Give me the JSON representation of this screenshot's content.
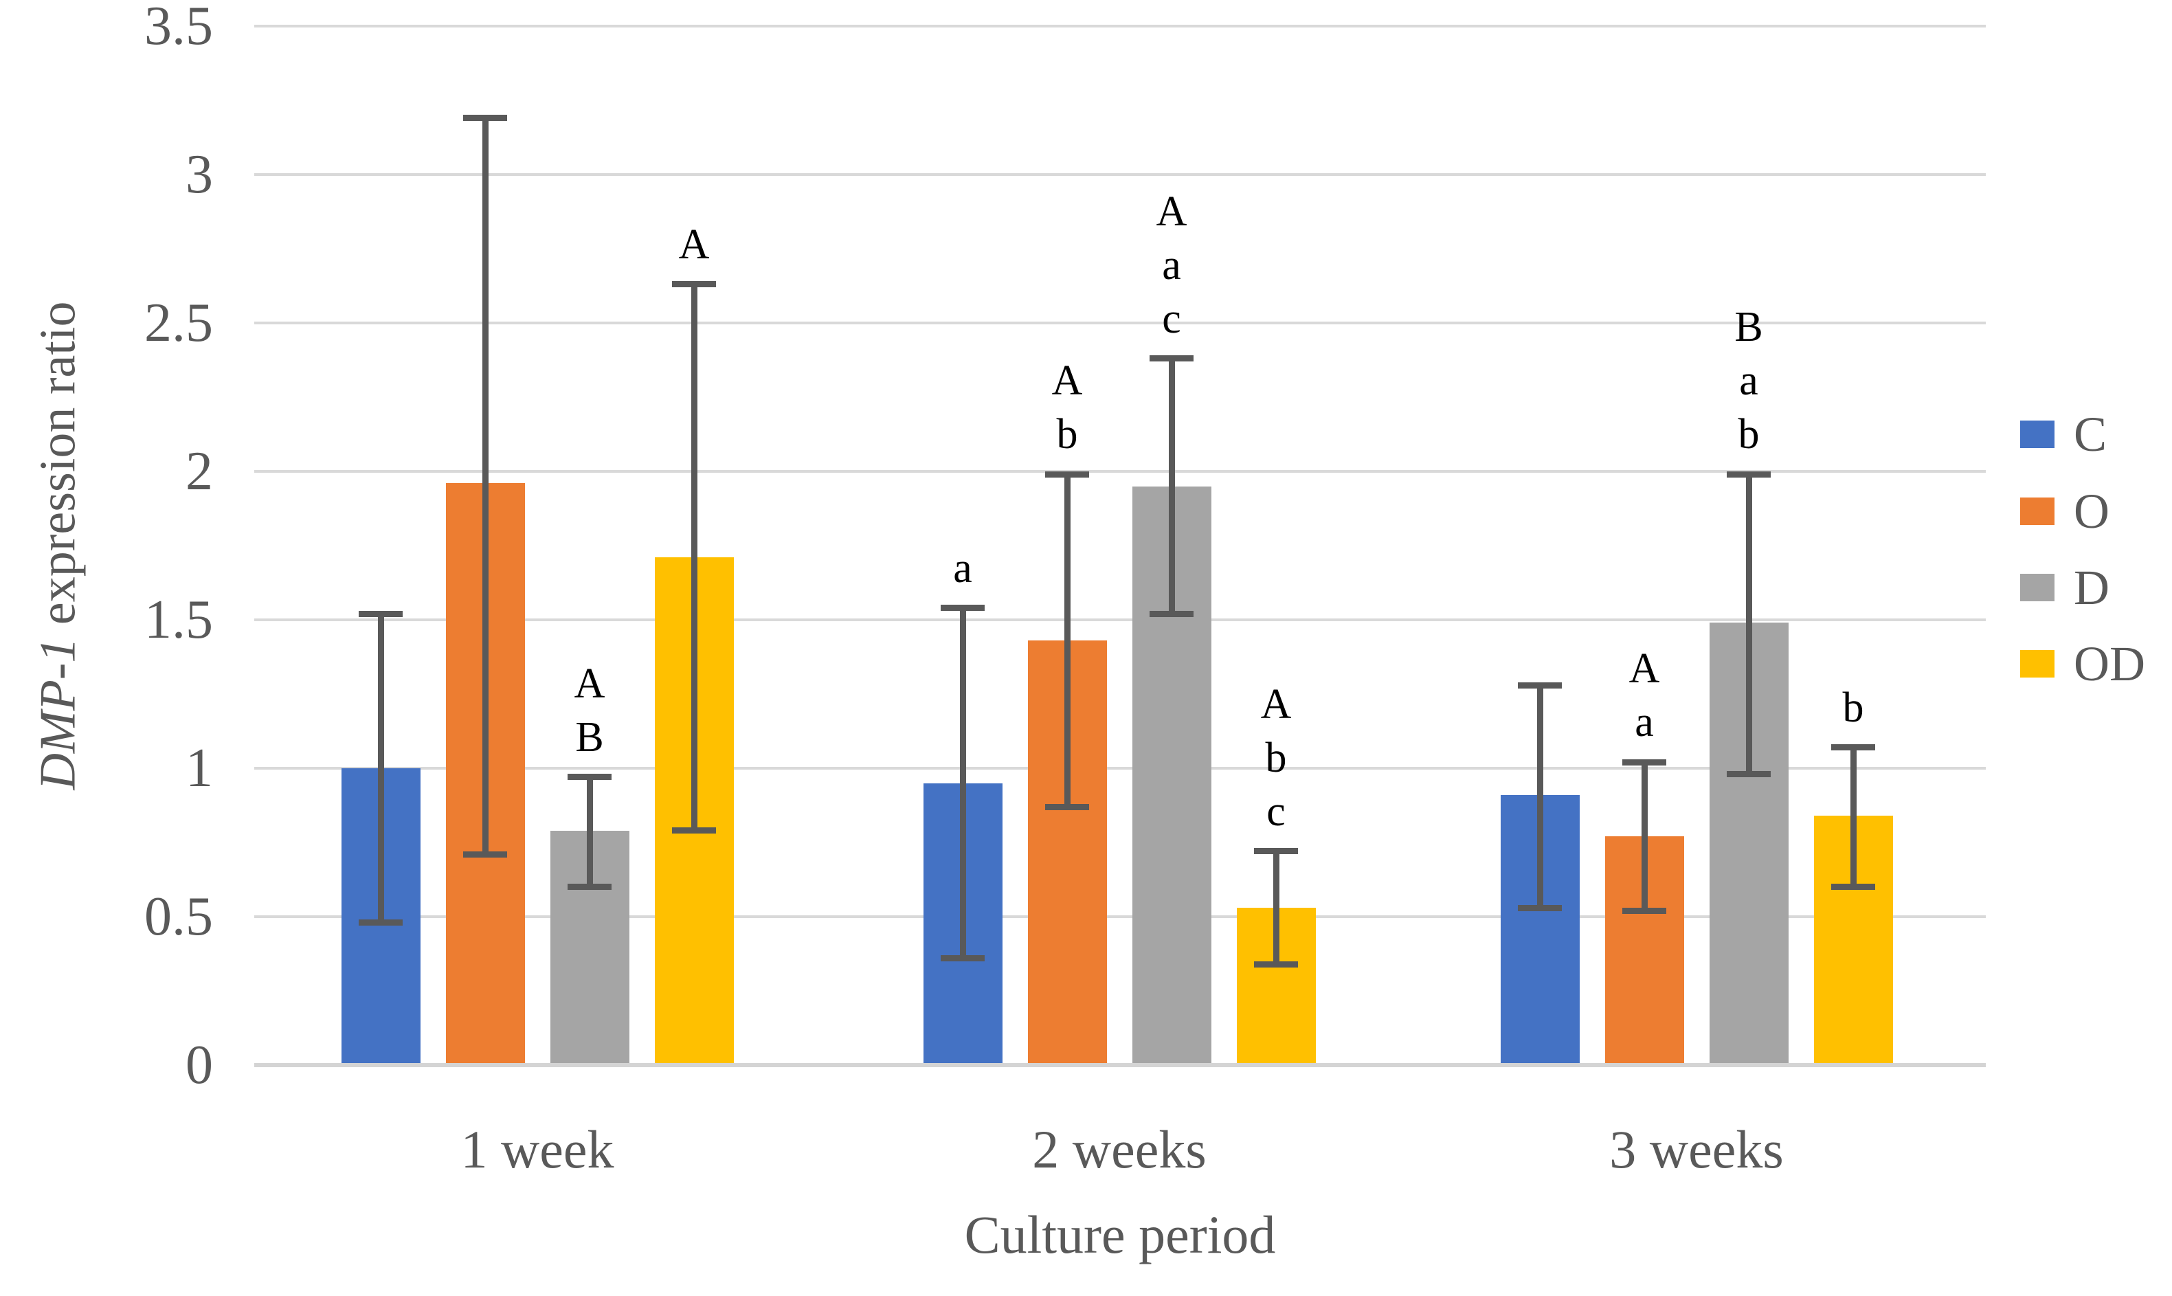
{
  "chart_data": {
    "type": "bar",
    "title": "",
    "xlabel": "Culture period",
    "ylabel": "DMP-1 expression ratio",
    "ylabel_italic": "DMP-1",
    "ylabel_regular": " expression ratio",
    "ylim": [
      0,
      3.5
    ],
    "ytick_step": 0.5,
    "ytick_labels": [
      "0",
      "0.5",
      "1",
      "1.5",
      "2",
      "2.5",
      "3",
      "3.5"
    ],
    "grid": true,
    "legend_position": "right",
    "categories": [
      "1 week",
      "2 weeks",
      "3 weeks"
    ],
    "series": [
      {
        "name": "C",
        "color": "#4472C4",
        "values": [
          1.0,
          0.95,
          0.91
        ],
        "err_low": [
          0.48,
          0.36,
          0.53
        ],
        "err_high": [
          1.52,
          1.54,
          1.28
        ],
        "letters": [
          [],
          [
            "a"
          ],
          []
        ]
      },
      {
        "name": "O",
        "color": "#ED7D31",
        "values": [
          1.96,
          1.43,
          0.77
        ],
        "err_low": [
          0.71,
          0.87,
          0.52
        ],
        "err_high": [
          3.19,
          1.99,
          1.02
        ],
        "letters": [
          [],
          [
            "A",
            "b"
          ],
          [
            "A",
            "a"
          ]
        ]
      },
      {
        "name": "D",
        "color": "#A5A5A5",
        "values": [
          0.79,
          1.95,
          1.49
        ],
        "err_low": [
          0.6,
          1.52,
          0.98
        ],
        "err_high": [
          0.97,
          2.38,
          1.99
        ],
        "letters": [
          [
            "A",
            "B"
          ],
          [
            "A",
            "a",
            "c"
          ],
          [
            "B",
            "a",
            "b"
          ]
        ]
      },
      {
        "name": "OD",
        "color": "#FFC000",
        "values": [
          1.71,
          0.53,
          0.84
        ],
        "err_low": [
          0.79,
          0.34,
          0.6
        ],
        "err_high": [
          2.63,
          0.72,
          1.07
        ],
        "letters": [
          [
            "A"
          ],
          [
            "A",
            "b",
            "c"
          ],
          [
            "b"
          ]
        ]
      }
    ]
  },
  "colors": {
    "gridline": "#D9D9D9",
    "axis_line": "#D4D4D4",
    "error_bar": "#595959",
    "tick_text": "#595959",
    "annotation_text": "#000000"
  }
}
